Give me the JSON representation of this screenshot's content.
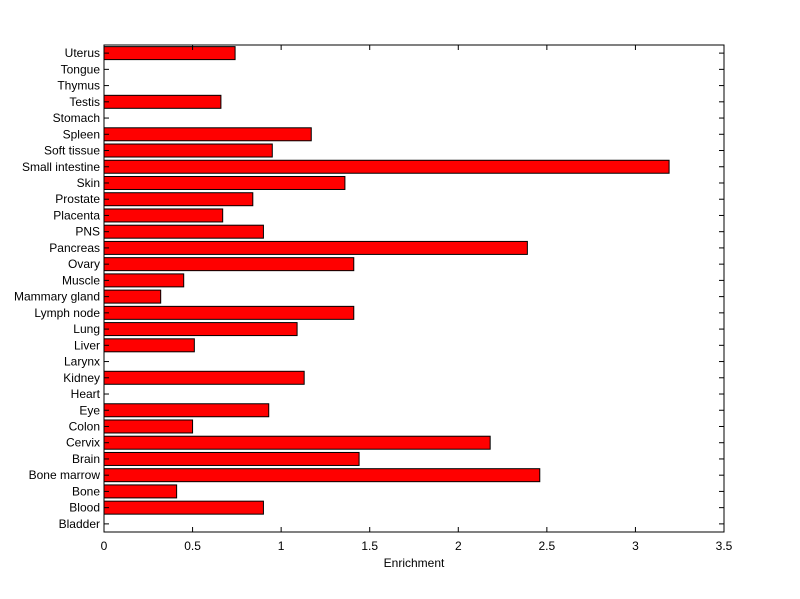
{
  "chart_data": {
    "type": "bar",
    "orientation": "horizontal",
    "title": "",
    "xlabel": "Enrichment",
    "ylabel": "",
    "xlim": [
      0,
      3.5
    ],
    "xticks": [
      0,
      0.5,
      1,
      1.5,
      2,
      2.5,
      3,
      3.5
    ],
    "xtick_labels": [
      "0",
      "0.5",
      "1",
      "1.5",
      "2",
      "2.5",
      "3",
      "3.5"
    ],
    "grid": false,
    "legend": "none",
    "bar_color": "#ff0000",
    "bar_edge_color": "#000000",
    "categories": [
      "Bladder",
      "Blood",
      "Bone",
      "Bone marrow",
      "Brain",
      "Cervix",
      "Colon",
      "Eye",
      "Heart",
      "Kidney",
      "Larynx",
      "Liver",
      "Lung",
      "Lymph node",
      "Mammary gland",
      "Muscle",
      "Ovary",
      "Pancreas",
      "PNS",
      "Placenta",
      "Prostate",
      "Skin",
      "Small intestine",
      "Soft tissue",
      "Spleen",
      "Stomach",
      "Testis",
      "Thymus",
      "Tongue",
      "Uterus"
    ],
    "values": [
      0,
      0.9,
      0.41,
      2.46,
      1.44,
      2.18,
      0.5,
      0.93,
      0,
      1.13,
      0,
      0.51,
      1.09,
      1.41,
      0.32,
      0.45,
      1.41,
      2.39,
      0.9,
      0.67,
      0.84,
      1.36,
      3.19,
      0.95,
      1.17,
      0,
      0.66,
      0,
      0,
      0.74
    ]
  }
}
